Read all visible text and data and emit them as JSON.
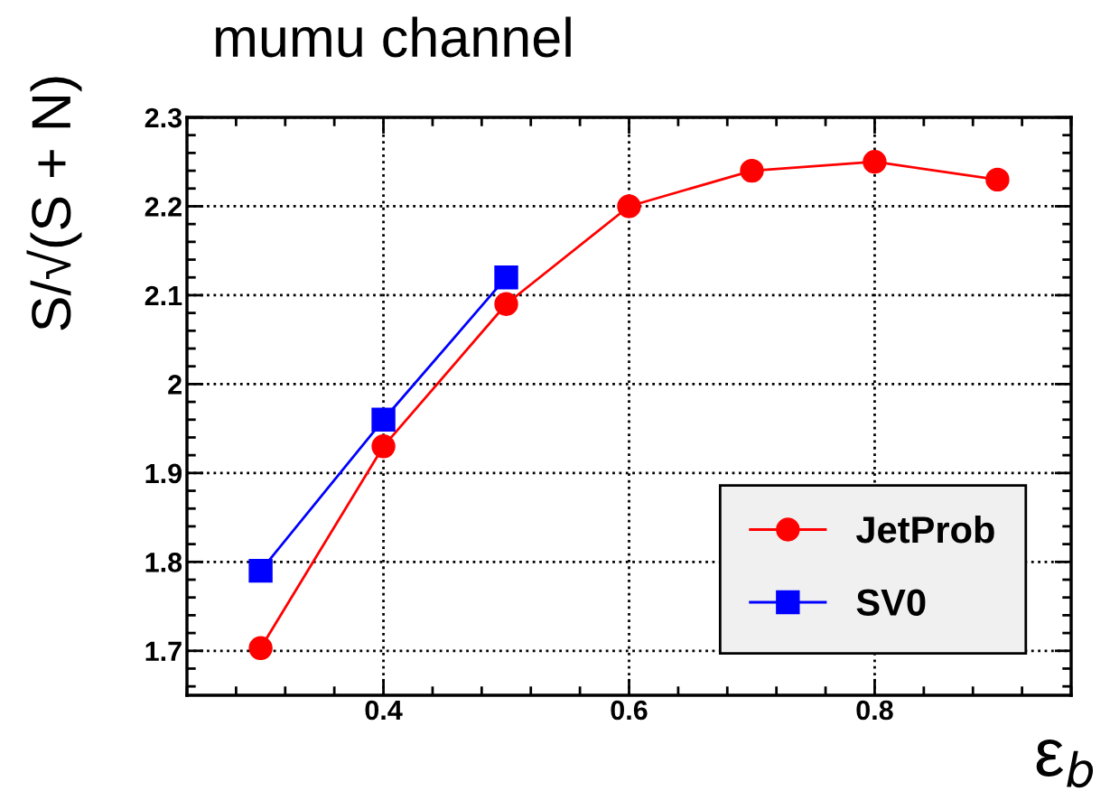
{
  "chart_data": {
    "type": "line",
    "title": "mumu channel",
    "xlabel": "ε$_{b}$",
    "ylabel": "S/√(S + N)",
    "xlim": [
      0.24,
      0.96
    ],
    "xticks": [
      0.4,
      0.6,
      0.8
    ],
    "ylim": [
      1.65,
      2.3
    ],
    "yticks": [
      1.7,
      1.8,
      1.9,
      2,
      2.1,
      2.2,
      2.3
    ],
    "grid": true,
    "legend": "bottom right",
    "line_style": "solid",
    "series": [
      {
        "name": "JetProb",
        "color": "#ff0000",
        "marker": "circle",
        "x": [
          0.3,
          0.4,
          0.5,
          0.6,
          0.7,
          0.8,
          0.9
        ],
        "values": [
          1.703,
          1.93,
          2.09,
          2.2,
          2.24,
          2.25,
          2.23
        ]
      },
      {
        "name": "SV0",
        "color": "#0000ff",
        "marker": "square",
        "x": [
          0.3,
          0.4,
          0.5
        ],
        "values": [
          1.79,
          1.96,
          2.12
        ]
      }
    ]
  }
}
